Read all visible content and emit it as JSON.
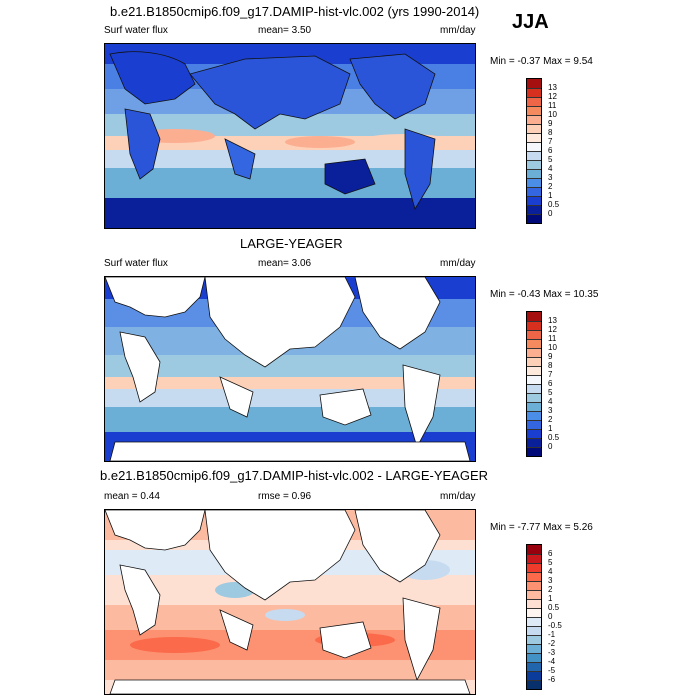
{
  "season": "JJA",
  "panels": [
    {
      "title": "b.e21.B1850cmip6.f09_g17.DAMIP-hist-vlc.002 (yrs 1990-2014)",
      "left_label": "Surf water flux",
      "stat1": "mean=   3.50",
      "stat2": "",
      "units": "mm/day",
      "minmax": "Min =  -0.37 Max =   9.54",
      "levels": [
        "13",
        "12",
        "11",
        "10",
        "9",
        "8",
        "7",
        "6",
        "5",
        "4",
        "3",
        "2",
        "1",
        "0.5",
        "0"
      ],
      "colors": [
        "#a50f0f",
        "#d7301f",
        "#ef6548",
        "#f58a5f",
        "#fcae91",
        "#fdd0b8",
        "#fee9dd",
        "#f4f7fb",
        "#c6dbef",
        "#9ecae1",
        "#6baed6",
        "#4a8ee8",
        "#3366e0",
        "#1a3fd0",
        "#0a1f9a",
        "#000a78"
      ],
      "map_style": "full"
    },
    {
      "title": "LARGE-YEAGER",
      "left_label": "Surf water flux",
      "stat1": "mean=   3.06",
      "stat2": "",
      "units": "mm/day",
      "minmax": "Min =  -0.43 Max =  10.35",
      "levels": [
        "13",
        "12",
        "11",
        "10",
        "9",
        "8",
        "7",
        "6",
        "5",
        "4",
        "3",
        "2",
        "1",
        "0.5",
        "0"
      ],
      "colors": [
        "#a50f0f",
        "#d7301f",
        "#ef6548",
        "#f58a5f",
        "#fcae91",
        "#fdd0b8",
        "#fee9dd",
        "#f4f7fb",
        "#c6dbef",
        "#9ecae1",
        "#6baed6",
        "#4a8ee8",
        "#3366e0",
        "#1a3fd0",
        "#0a1f9a",
        "#000a78"
      ],
      "map_style": "ocean"
    },
    {
      "title": "b.e21.B1850cmip6.f09_g17.DAMIP-hist-vlc.002 - LARGE-YEAGER",
      "left_label": "mean =   0.44",
      "stat1": "rmse =   0.96",
      "stat2": "",
      "units": "mm/day",
      "minmax": "Min =  -7.77 Max =   5.26",
      "levels": [
        "6",
        "5",
        "4",
        "3",
        "2",
        "1",
        "0.5",
        "0",
        "-0.5",
        "-1",
        "-2",
        "-3",
        "-4",
        "-5",
        "-6"
      ],
      "colors": [
        "#99000d",
        "#cb181d",
        "#ef3b2c",
        "#fb6a4a",
        "#fc9272",
        "#fcbba1",
        "#fee0d2",
        "#fff5f0",
        "#deebf7",
        "#c6dbef",
        "#9ecae1",
        "#6baed6",
        "#4292c6",
        "#2166ac",
        "#0b3c9c",
        "#08306b"
      ],
      "map_style": "diff"
    }
  ]
}
